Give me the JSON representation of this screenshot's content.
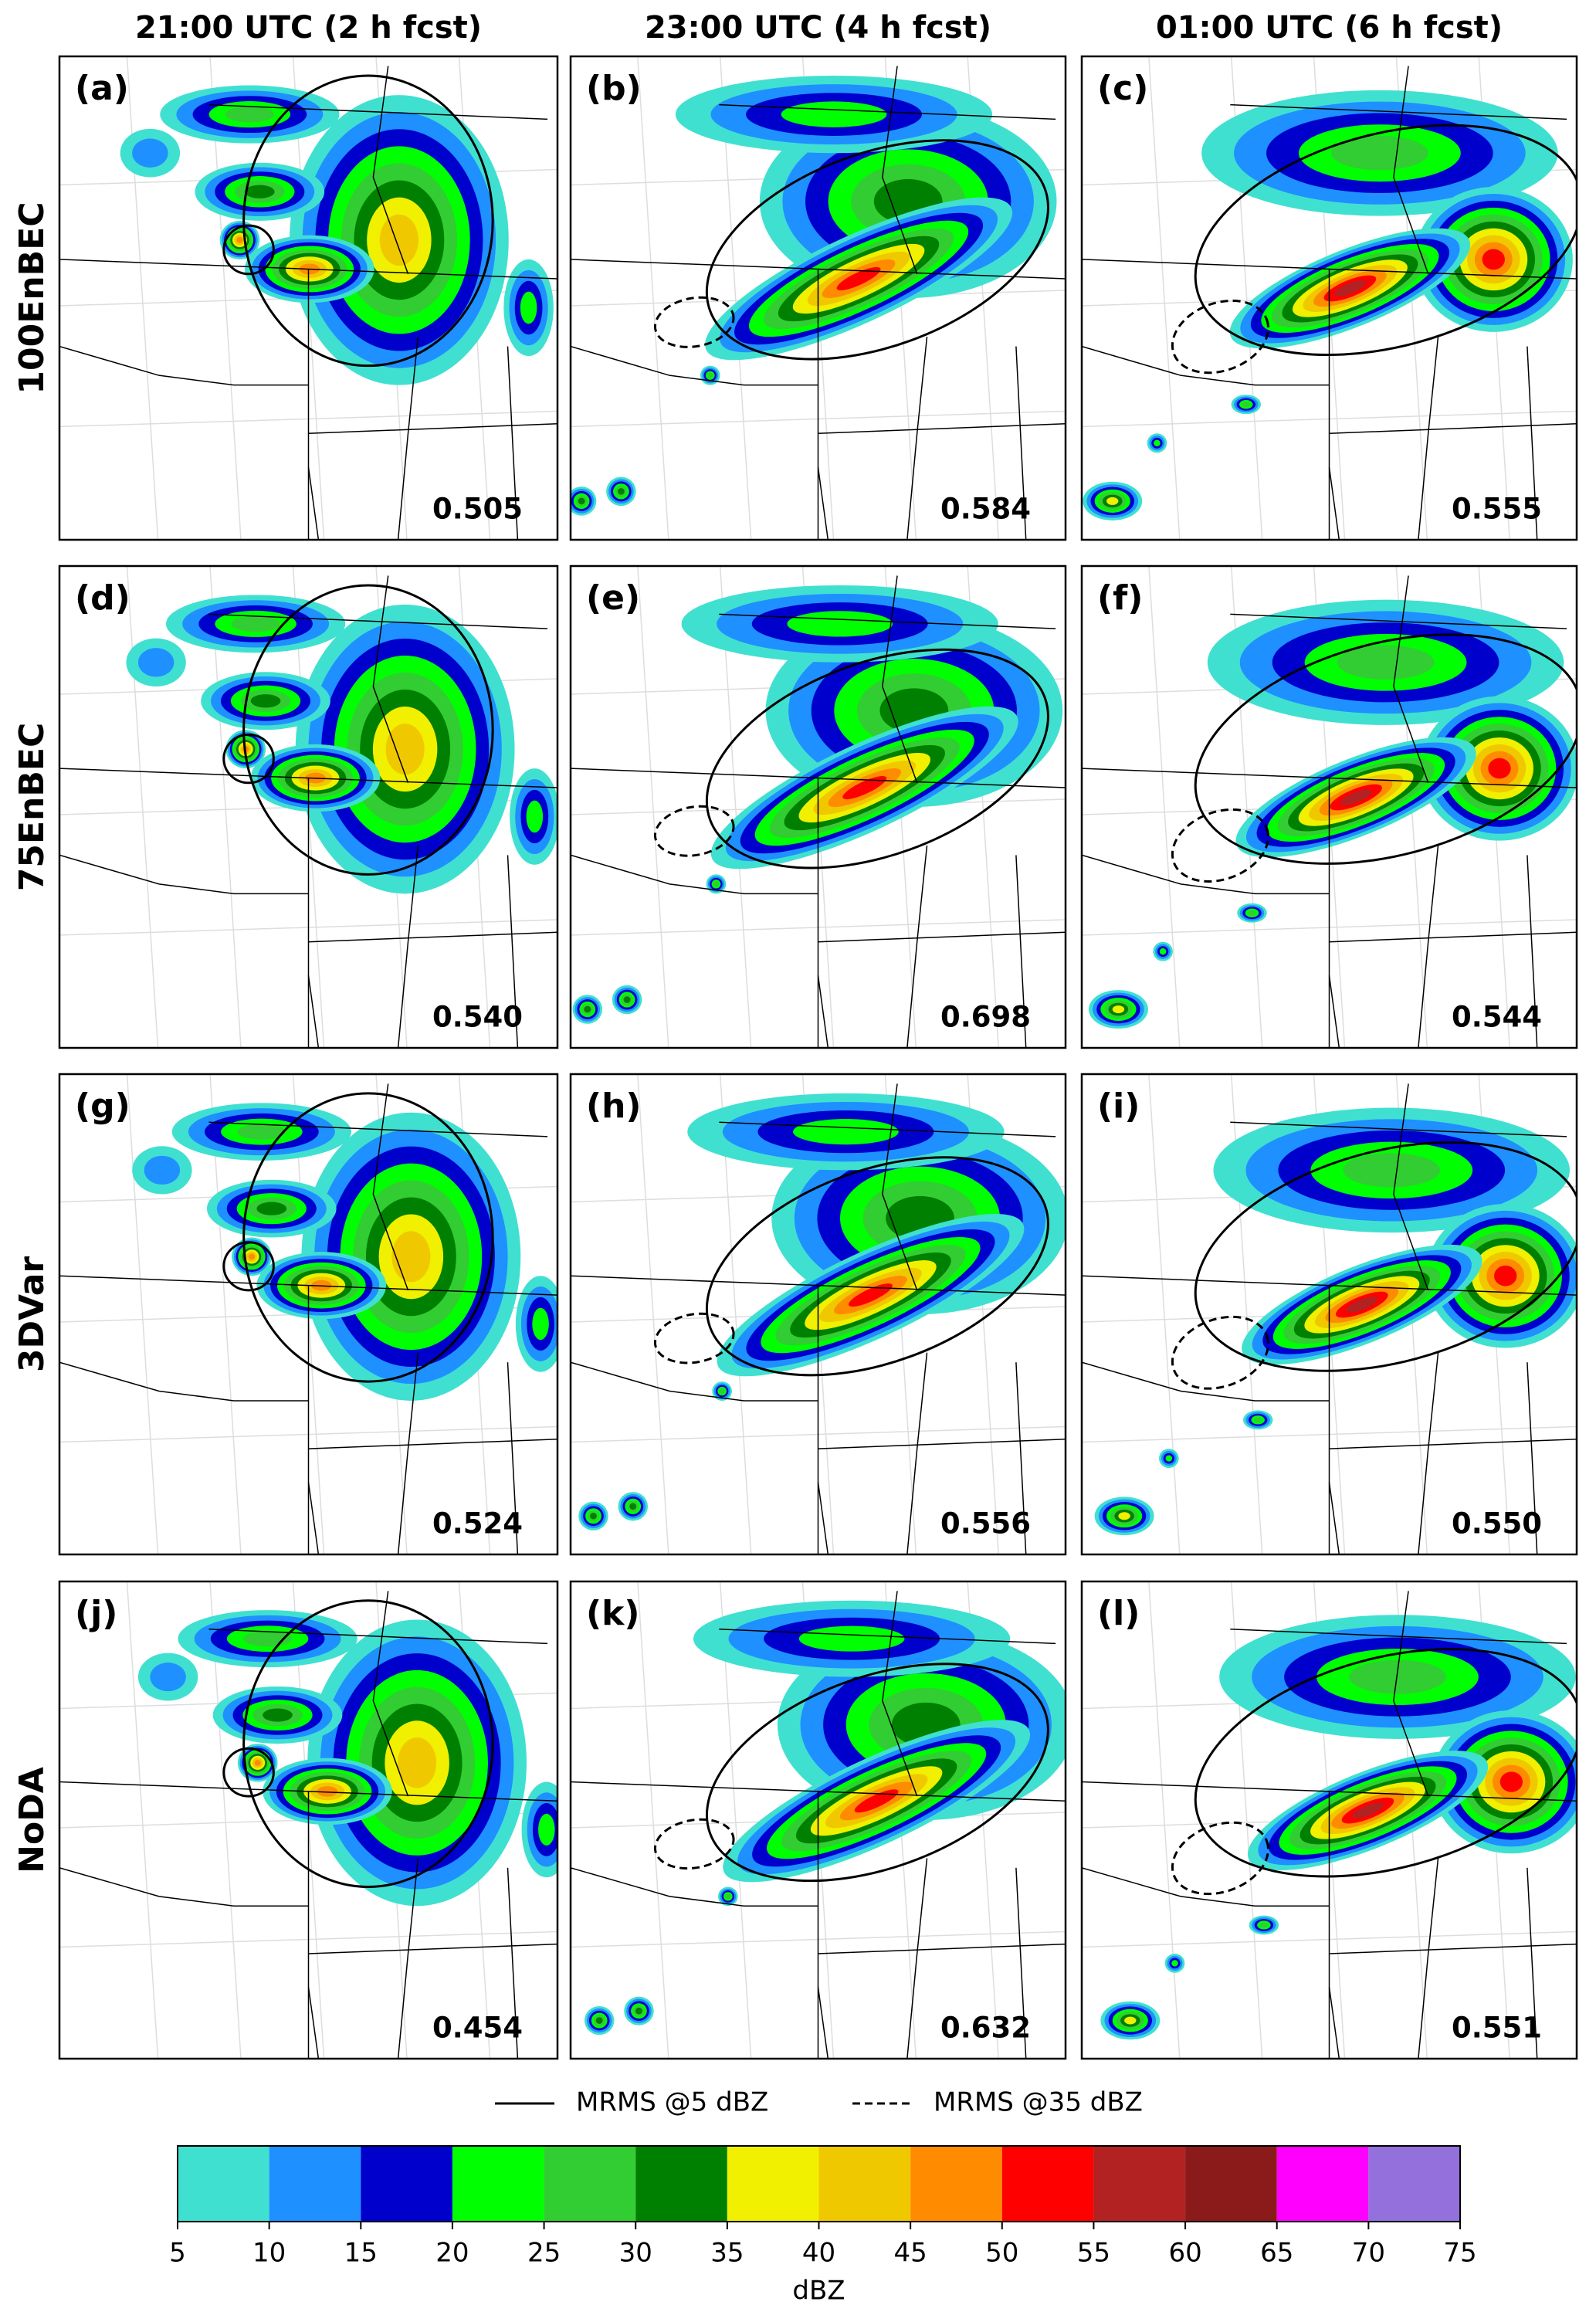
{
  "columns": [
    "21:00 UTC (2 h fcst)",
    "23:00 UTC (4 h fcst)",
    "01:00 UTC (6 h fcst)"
  ],
  "rows": [
    "100EnBEC",
    "75EnBEC",
    "3DVar",
    "NoDA"
  ],
  "panels": [
    [
      {
        "label": "(a)",
        "score": "0.505"
      },
      {
        "label": "(b)",
        "score": "0.584"
      },
      {
        "label": "(c)",
        "score": "0.555"
      }
    ],
    [
      {
        "label": "(d)",
        "score": "0.540"
      },
      {
        "label": "(e)",
        "score": "0.698"
      },
      {
        "label": "(f)",
        "score": "0.544"
      }
    ],
    [
      {
        "label": "(g)",
        "score": "0.524"
      },
      {
        "label": "(h)",
        "score": "0.556"
      },
      {
        "label": "(i)",
        "score": "0.550"
      }
    ],
    [
      {
        "label": "(j)",
        "score": "0.454"
      },
      {
        "label": "(k)",
        "score": "0.632"
      },
      {
        "label": "(l)",
        "score": "0.551"
      }
    ]
  ],
  "legend": [
    {
      "label": "MRMS @5 dBZ",
      "style": "solid"
    },
    {
      "label": "MRMS @35 dBZ",
      "style": "dashed"
    }
  ],
  "colorbar": {
    "label": "dBZ",
    "ticks": [
      5,
      10,
      15,
      20,
      25,
      30,
      35,
      40,
      45,
      50,
      55,
      60,
      65,
      70,
      75
    ],
    "colors": [
      "#40e0d0",
      "#1e90ff",
      "#0000cd",
      "#00ff00",
      "#32cd32",
      "#008000",
      "#f0f000",
      "#f0c800",
      "#ff8c00",
      "#ff0000",
      "#b22222",
      "#8b1a1a",
      "#ff00ff",
      "#9370db"
    ]
  }
}
